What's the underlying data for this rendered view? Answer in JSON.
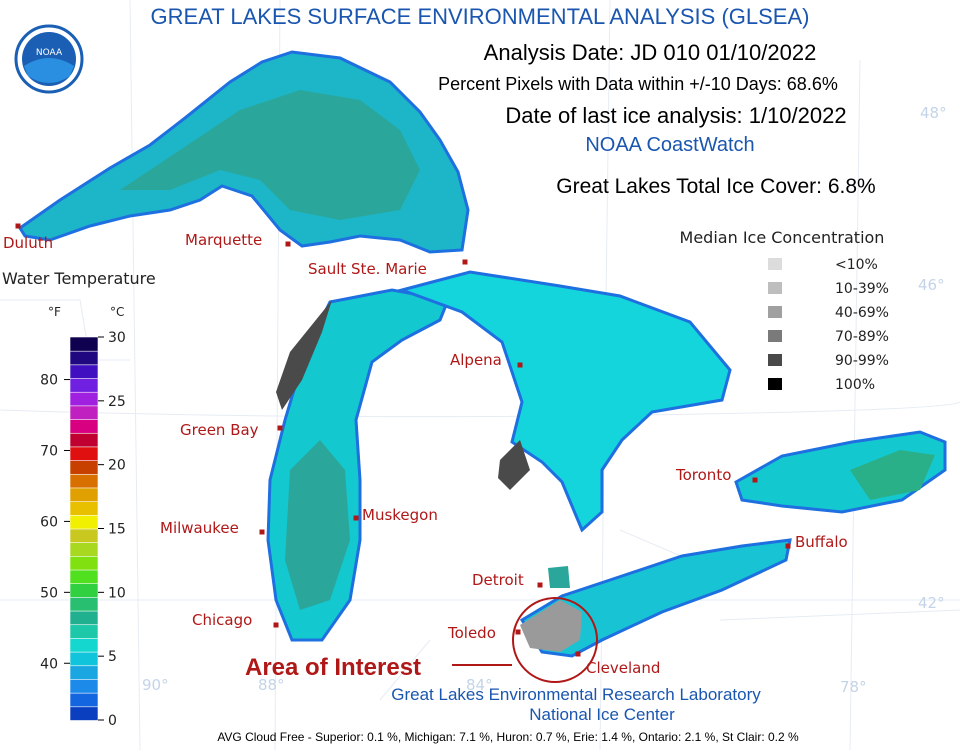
{
  "header": {
    "title": "GREAT LAKES SURFACE ENVIRONMENTAL ANALYSIS (GLSEA)",
    "logo_text": "NOAA",
    "analysis_date": "Analysis Date:  JD 010 01/10/2022",
    "percent_pixels": "Percent Pixels with Data within +/-10 Days:  68.6%",
    "last_ice": "Date of last ice analysis: 1/10/2022",
    "source": "NOAA CoastWatch",
    "total_ice": "Great Lakes Total Ice Cover:   6.8%"
  },
  "ice_legend": {
    "title": "Median Ice Concentration",
    "items": [
      {
        "label": "<10%",
        "color": "#dcdcdc"
      },
      {
        "label": "10-39%",
        "color": "#bebebe"
      },
      {
        "label": "40-69%",
        "color": "#a0a0a0"
      },
      {
        "label": "70-89%",
        "color": "#7a7a7a"
      },
      {
        "label": "90-99%",
        "color": "#4a4a4a"
      },
      {
        "label": "100%",
        "color": "#000000"
      }
    ]
  },
  "temp_legend": {
    "title": "Water Temperature",
    "f_unit": "°F",
    "c_unit": "°C",
    "c_range": [
      0,
      30
    ],
    "c_ticks": [
      30,
      25,
      20,
      15,
      10,
      5,
      0
    ],
    "f_ticks": [
      80,
      70,
      60,
      50,
      40
    ],
    "colors": [
      "#0a3fbf",
      "#1466e0",
      "#1c8ae8",
      "#1aa6e0",
      "#10c4dc",
      "#14d8d0",
      "#1cc8a8",
      "#20b090",
      "#28c070",
      "#30d040",
      "#50e020",
      "#80e010",
      "#a8d820",
      "#c8c820",
      "#f0f000",
      "#e8c000",
      "#e0a000",
      "#d87000",
      "#c84000",
      "#e01010",
      "#c00030",
      "#d80080",
      "#c020c0",
      "#a020e0",
      "#7020e0",
      "#4010c0",
      "#200880",
      "#100050"
    ]
  },
  "cities": [
    "Duluth",
    "Marquette",
    "Sault Ste. Marie",
    "Alpena",
    "Green Bay",
    "Milwaukee",
    "Muskegon",
    "Chicago",
    "Detroit",
    "Toledo",
    "Cleveland",
    "Toronto",
    "Buffalo"
  ],
  "graticule": [
    "48°",
    "46°",
    "42°",
    "90°",
    "88°",
    "84°",
    "78°"
  ],
  "annotation": "Area of Interest",
  "footer": {
    "lab": "Great Lakes Environmental Research Laboratory",
    "center": "National Ice Center",
    "cloud_free": "AVG Cloud Free - Superior:  0.1 %, Michigan:  7.1 %, Huron:  0.7 %, Erie:  1.4 %, Ontario:  2.1 %, St Clair:  0.2 %"
  }
}
